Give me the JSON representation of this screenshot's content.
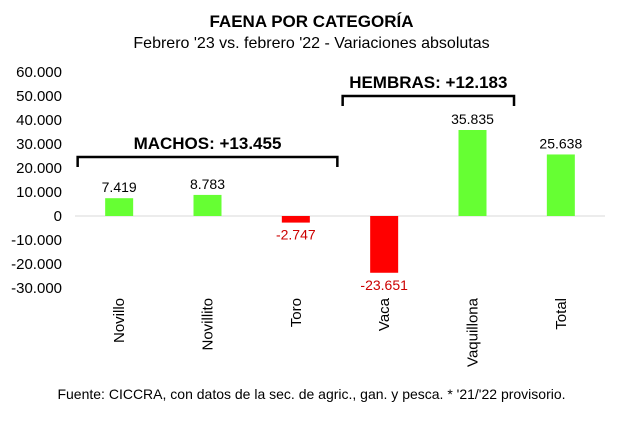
{
  "chart_data": {
    "type": "bar",
    "title": "FAENA POR CATEGORÍA",
    "subtitle": "Febrero '23 vs. febrero '22 - Variaciones absolutas",
    "categories": [
      "Novillo",
      "Novillito",
      "Toro",
      "Vaca",
      "Vaquillona",
      "Total"
    ],
    "values": [
      7419,
      8783,
      -2747,
      -23651,
      35835,
      25638
    ],
    "value_labels": [
      "7.419",
      "8.783",
      "-2.747",
      "-23.651",
      "35.835",
      "25.638"
    ],
    "y_ticks": [
      "60.000",
      "50.000",
      "40.000",
      "30.000",
      "20.000",
      "10.000",
      "0",
      "-10.000",
      "-20.000",
      "-30.000"
    ],
    "ylim": [
      -30000,
      60000
    ],
    "grid": false,
    "legend": "none",
    "colors": {
      "positive": "#66ff33",
      "negative": "#ff0000",
      "positive_label": "#000000",
      "negative_label": "#cc0000"
    },
    "annotations": [
      {
        "text": "MACHOS: +13.455",
        "from_category": 0,
        "to_category": 2
      },
      {
        "text": "HEMBRAS: +12.183",
        "from_category": 3,
        "to_category": 4
      }
    ]
  },
  "source": "Fuente: CICCRA, con datos de la sec. de agric., gan. y pesca. * '21/'22 provisorio."
}
